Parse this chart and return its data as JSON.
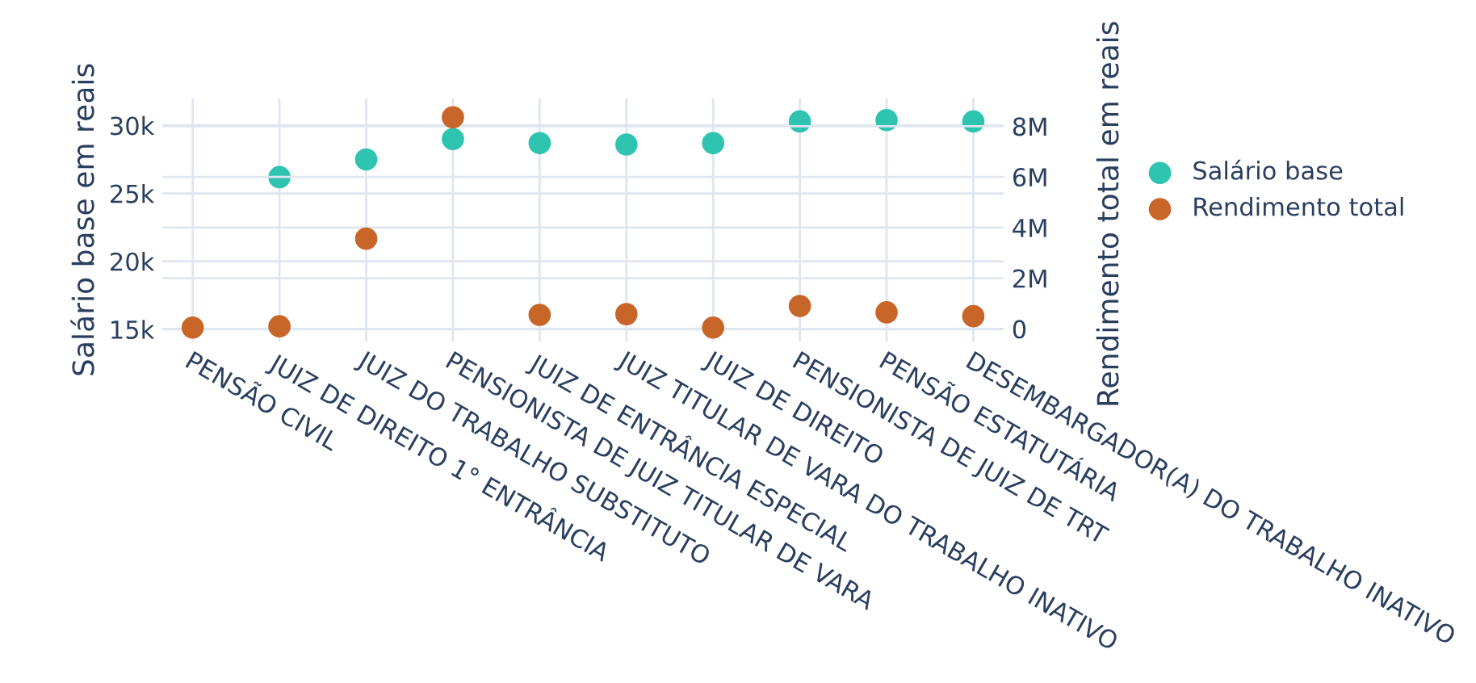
{
  "chart_data": {
    "type": "scatter",
    "ylabel": "Salário base em reais",
    "y2label": "Rendimento total em reais",
    "categories": [
      "PENSÃO CIVIL",
      "JUIZ DE DIREITO 1° ENTRÂNCIA",
      "JUIZ DO TRABALHO SUBSTITUTO",
      "PENSIONISTA DE JUIZ TITULAR DE VARA",
      "JUIZ DE ENTRÂNCIA ESPECIAL",
      "JUIZ TITULAR DE VARA DO TRABALHO INATIVO",
      "JUIZ DE DIREITO",
      "PENSIONISTA DE JUIZ DE TRT",
      "PENSÃO ESTATUTÁRIA",
      "DESEMBARGADOR(A) DO TRABALHO INATIVO"
    ],
    "series": [
      {
        "name": "Salário base",
        "color": "#2ec4b0",
        "values": [
          null,
          26200,
          27500,
          29000,
          28700,
          28600,
          28700,
          30300,
          30400,
          30300
        ]
      },
      {
        "name": "Rendimento total",
        "color": "#c8662a",
        "axis": "y2",
        "values": [
          50000,
          100000,
          3560000,
          8350000,
          550000,
          580000,
          50000,
          900000,
          650000,
          500000
        ]
      }
    ],
    "ylim": [
      14100,
      32000
    ],
    "yticks": [
      {
        "value": 15000,
        "label": "15k"
      },
      {
        "value": 20000,
        "label": "20k"
      },
      {
        "value": 25000,
        "label": "25k"
      },
      {
        "value": 30000,
        "label": "30k"
      }
    ],
    "y2lim": [
      -500000,
      9100000
    ],
    "y2ticks": [
      0,
      {
        "value": 2000000,
        "label": "2M"
      },
      {
        "value": 4000000,
        "label": "4M"
      },
      {
        "value": 6000000,
        "label": "6M"
      },
      {
        "value": 8000000,
        "label": "8M"
      }
    ],
    "grid": true,
    "legend": "right",
    "marker": "circle"
  }
}
